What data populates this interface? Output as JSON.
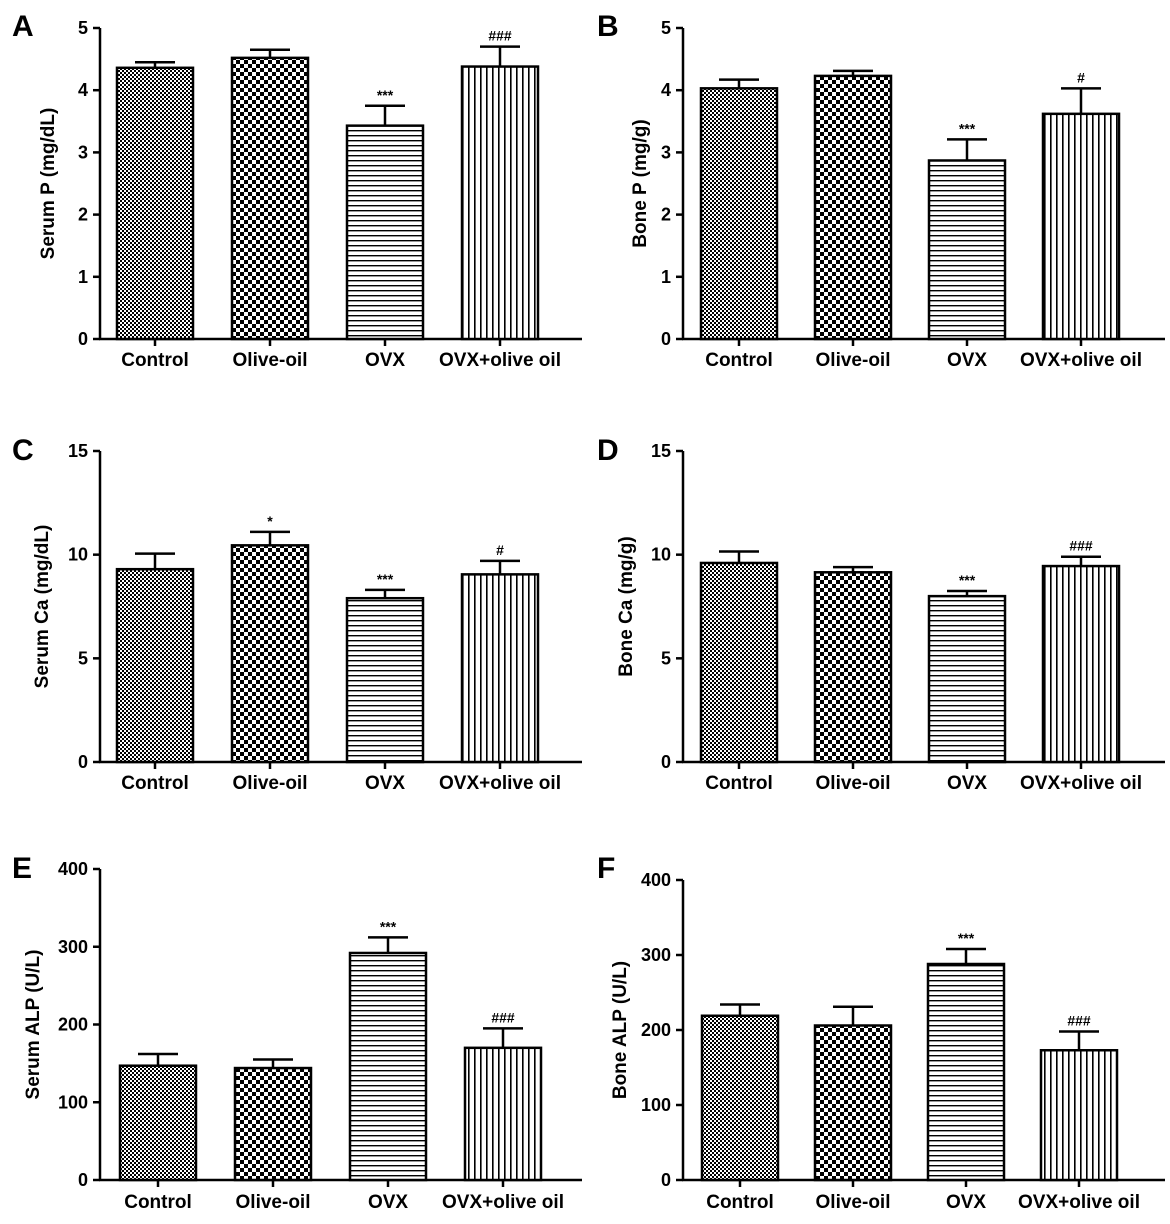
{
  "chart_data": [
    {
      "type": "bar",
      "panel": "A",
      "ylabel": "Serum P (mg/dL)",
      "ylim": [
        0,
        5
      ],
      "yticks": [
        0,
        1,
        2,
        3,
        4,
        5
      ],
      "categories": [
        "Control",
        "Olive-oil",
        "OVX",
        "OVX+olive oil"
      ],
      "values": [
        4.36,
        4.52,
        3.43,
        4.38
      ],
      "errors": [
        0.09,
        0.13,
        0.32,
        0.32
      ],
      "annotations": [
        "",
        "",
        "***",
        "###"
      ],
      "patterns": [
        "fine-check",
        "check",
        "hlines",
        "vlines"
      ]
    },
    {
      "type": "bar",
      "panel": "B",
      "ylabel": "Bone P (mg/g)",
      "ylim": [
        0,
        5
      ],
      "yticks": [
        0,
        1,
        2,
        3,
        4,
        5
      ],
      "categories": [
        "Control",
        "Olive-oil",
        "OVX",
        "OVX+olive oil"
      ],
      "values": [
        4.03,
        4.23,
        2.87,
        3.62
      ],
      "errors": [
        0.14,
        0.08,
        0.34,
        0.41
      ],
      "annotations": [
        "",
        "",
        "***",
        "#"
      ],
      "patterns": [
        "fine-check",
        "check",
        "hlines",
        "vlines"
      ]
    },
    {
      "type": "bar",
      "panel": "C",
      "ylabel": "Serum Ca (mg/dL)",
      "ylim": [
        0,
        15
      ],
      "yticks": [
        0,
        5,
        10,
        15
      ],
      "categories": [
        "Control",
        "Olive-oil",
        "OVX",
        "OVX+olive oil"
      ],
      "values": [
        9.3,
        10.45,
        7.9,
        9.05
      ],
      "errors": [
        0.75,
        0.65,
        0.4,
        0.65
      ],
      "annotations": [
        "",
        "*",
        "***",
        "#"
      ],
      "patterns": [
        "fine-check",
        "check",
        "hlines",
        "vlines"
      ]
    },
    {
      "type": "bar",
      "panel": "D",
      "ylabel": "Bone Ca (mg/g)",
      "ylim": [
        0,
        15
      ],
      "yticks": [
        0,
        5,
        10,
        15
      ],
      "categories": [
        "Control",
        "Olive-oil",
        "OVX",
        "OVX+olive oil"
      ],
      "values": [
        9.6,
        9.15,
        8.0,
        9.45
      ],
      "errors": [
        0.55,
        0.25,
        0.25,
        0.45
      ],
      "annotations": [
        "",
        "",
        "***",
        "###"
      ],
      "patterns": [
        "fine-check",
        "check",
        "hlines",
        "vlines"
      ]
    },
    {
      "type": "bar",
      "panel": "E",
      "ylabel": "Serum ALP (U/L)",
      "ylim": [
        0,
        400
      ],
      "yticks": [
        0,
        100,
        200,
        300,
        400
      ],
      "categories": [
        "Control",
        "Olive-oil",
        "OVX",
        "OVX+olive oil"
      ],
      "values": [
        147,
        144,
        292,
        170
      ],
      "errors": [
        15,
        11,
        20,
        25
      ],
      "annotations": [
        "",
        "",
        "***",
        "###"
      ],
      "patterns": [
        "fine-check",
        "check",
        "hlines",
        "vlines"
      ]
    },
    {
      "type": "bar",
      "panel": "F",
      "ylabel": "Bone ALP (U/L)",
      "ylim": [
        0,
        400
      ],
      "yticks": [
        0,
        100,
        200,
        300,
        400
      ],
      "categories": [
        "Control",
        "Olive-oil",
        "OVX",
        "OVX+olive oil"
      ],
      "values": [
        219,
        206,
        288,
        173
      ],
      "errors": [
        15,
        25,
        20,
        25
      ],
      "annotations": [
        "",
        "",
        "***",
        "###"
      ],
      "patterns": [
        "fine-check",
        "check",
        "hlines",
        "vlines"
      ]
    }
  ]
}
